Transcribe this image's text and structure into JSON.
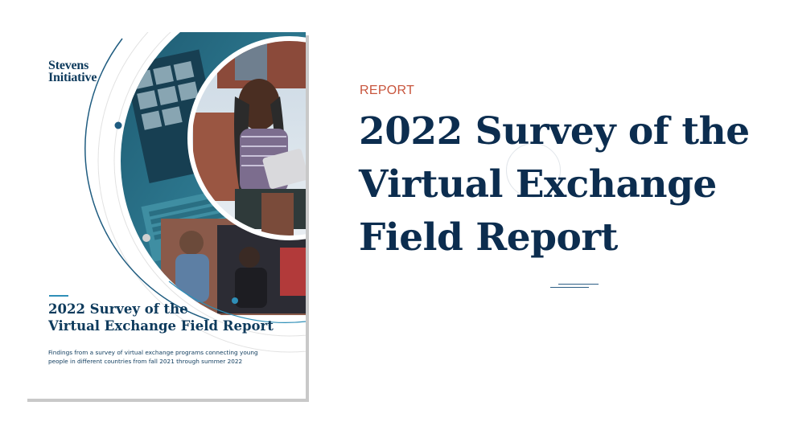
{
  "cover": {
    "logo_line1": "Stevens",
    "logo_line2": "Initiative",
    "title_line1": "2022 Survey of the",
    "title_line2": "Virtual Exchange Field Report",
    "subtitle_line1": "Findings from a survey of virtual exchange programs connecting young",
    "subtitle_line2": "people in different countries from fall 2021 through summer 2022"
  },
  "eyebrow": "REPORT",
  "headline": {
    "line1": "2022 Survey of the",
    "line2": "Virtual Exchange",
    "line3": "Field Report"
  },
  "colors": {
    "accent": "#c8553d",
    "navy": "#0c2d4f",
    "teal": "#2f8fb8"
  }
}
